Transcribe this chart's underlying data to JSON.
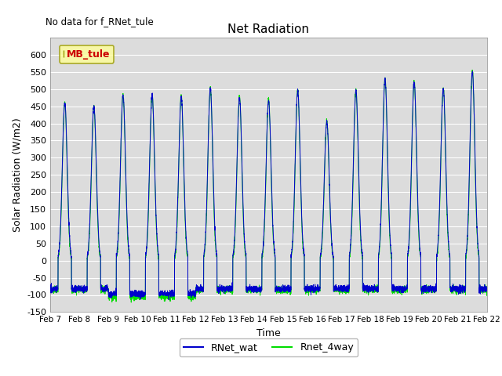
{
  "title": "Net Radiation",
  "xlabel": "Time",
  "ylabel": "Solar Radiation (W/m2)",
  "ylim": [
    -150,
    650
  ],
  "yticks": [
    -150,
    -100,
    -50,
    0,
    50,
    100,
    150,
    200,
    250,
    300,
    350,
    400,
    450,
    500,
    550,
    600
  ],
  "x_labels": [
    "Feb 7",
    "Feb 8",
    "Feb 9",
    "Feb 10",
    "Feb 11",
    "Feb 12",
    "Feb 13",
    "Feb 14",
    "Feb 15",
    "Feb 16",
    "Feb 17",
    "Feb 18",
    "Feb 19",
    "Feb 20",
    "Feb 21",
    "Feb 22"
  ],
  "line1_color": "#0000cc",
  "line2_color": "#00dd00",
  "line1_label": "RNet_wat",
  "line2_label": "Rnet_4way",
  "annotation_text": "No data for f_RNet_tule",
  "legend_label": "MB_tule",
  "legend_text_color": "#cc0000",
  "legend_bg": "#ffff99",
  "legend_border": "#999900",
  "n_days": 15,
  "points_per_day": 288,
  "background_color": "#dcdcdc",
  "grid_color": "#ffffff",
  "fig_bg": "#ffffff"
}
